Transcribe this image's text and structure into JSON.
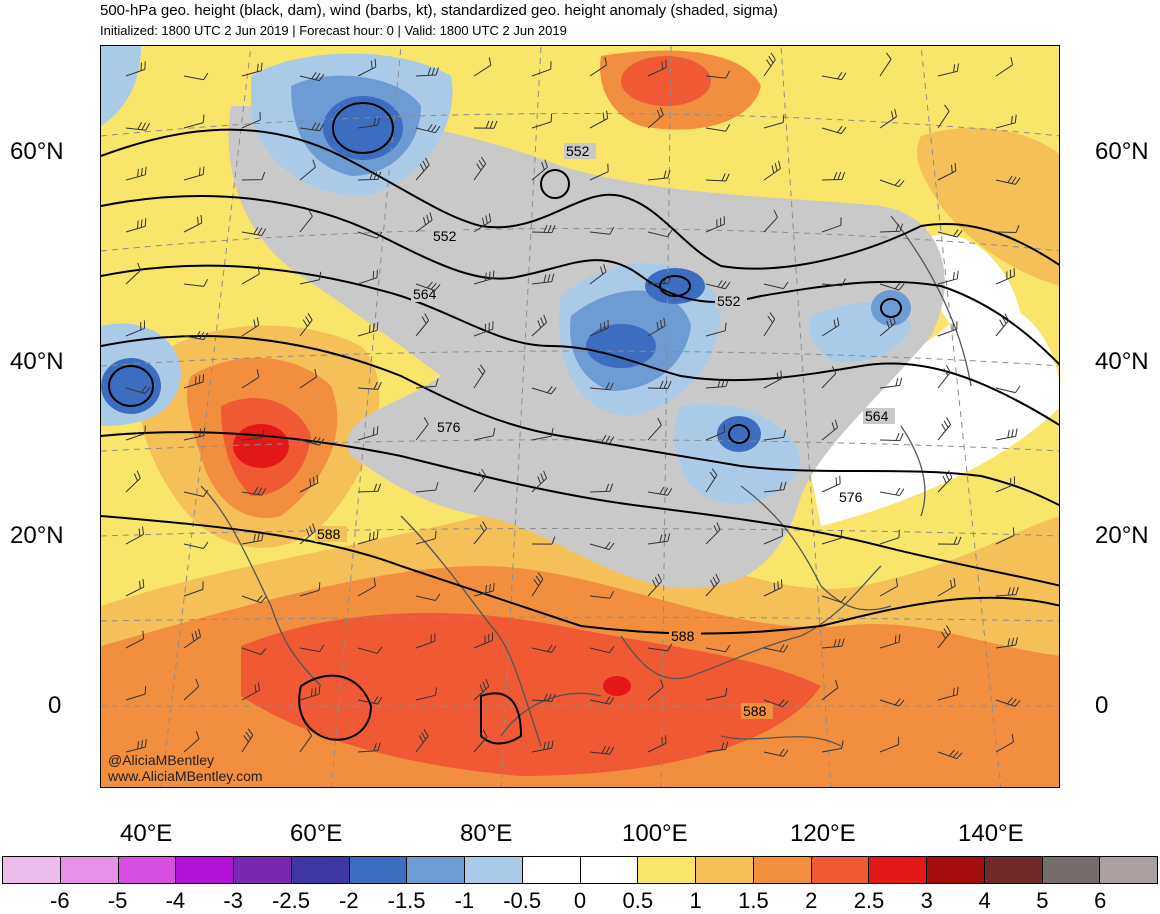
{
  "header": {
    "title": "500-hPa geo. height (black, dam), wind (barbs, kt), standardized geo. height anomaly (shaded, sigma)",
    "subtitle": "Initialized: 1800 UTC 2 Jun 2019 | Forecast hour: 0 | Valid: 1800 UTC 2 Jun 2019"
  },
  "axes": {
    "lat_left": [
      "60°N",
      "40°N",
      "20°N",
      "0"
    ],
    "lat_right": [
      "60°N",
      "40°N",
      "20°N",
      "0"
    ],
    "lon": [
      "40°E",
      "60°E",
      "80°E",
      "100°E",
      "120°E",
      "140°E"
    ]
  },
  "contour_labels": [
    "552",
    "552",
    "552",
    "564",
    "576",
    "564",
    "588",
    "588",
    "588",
    "576"
  ],
  "credit": {
    "handle": "@AliciaMBentley",
    "site": "www.AliciaMBentley.com"
  },
  "colorbar": {
    "colors": [
      "#ebbbe9",
      "#e690e8",
      "#d64fe0",
      "#b212d8",
      "#7a28b2",
      "#3f36a6",
      "#3d6dbf",
      "#6d9bd4",
      "#a9cbe8",
      "#ffffff",
      "#ffffff",
      "#fae56b",
      "#f5c057",
      "#f28f3f",
      "#ef5a35",
      "#e31919",
      "#a40d0d",
      "#712a2a",
      "#756e6c",
      "#a9a09f"
    ],
    "labels": [
      "-6",
      "-5",
      "-4",
      "-3",
      "-2.5",
      "-2",
      "-1.5",
      "-1",
      "-0.5",
      "0",
      "0.5",
      "1",
      "1.5",
      "2",
      "2.5",
      "3",
      "4",
      "5",
      "6"
    ]
  }
}
